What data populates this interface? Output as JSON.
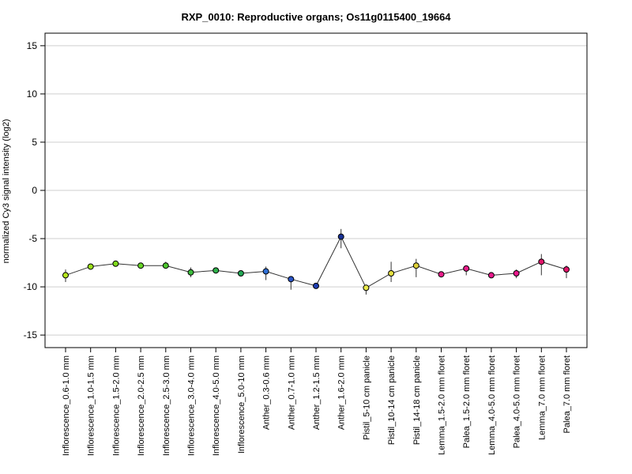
{
  "chart_data": {
    "type": "line",
    "title": "RXP_0010: Reproductive organs; Os11g0115400_19664",
    "xlabel": "",
    "ylabel": "normalized Cy3 signal intensity (log2)",
    "ylim": [
      -16.3,
      16.3
    ],
    "yticks": [
      -15,
      -10,
      -5,
      0,
      5,
      10,
      15
    ],
    "grid": true,
    "legend": "none",
    "categories": [
      "Inflorescence_0.6-1.0 mm",
      "Inflorescence_1.0-1.5 mm",
      "Inflorescence_1.5-2.0 mm",
      "Inflorescence_2.0-2.5 mm",
      "Inflorescence_2.5-3.0 mm",
      "Inflorescence_3.0-4.0 mm",
      "Inflorescence_4.0-5.0 mm",
      "Inflorescence_5.0-10 mm",
      "Anther_0.3-0.6 mm",
      "Anther_0.7-1.0 mm",
      "Anther_1.2-1.5 mm",
      "Anther_1.6-2.0 mm",
      "Pistil_5-10 cm panicle",
      "Pistil_10-14 cm panicle",
      "Pistil_14-18 cm panicle",
      "Lemma_1.5-2.0 mm floret",
      "Palea_1.5-2.0 mm floret",
      "Lemma_4.0-5.0 mm floret",
      "Palea_4.0-5.0 mm floret",
      "Lemma_7.0 mm floret",
      "Palea_7.0 mm floret"
    ],
    "values": [
      -8.8,
      -7.9,
      -7.6,
      -7.8,
      -7.8,
      -8.5,
      -8.3,
      -8.6,
      -8.4,
      -9.2,
      -9.9,
      -4.8,
      -10.1,
      -8.6,
      -7.8,
      -8.7,
      -8.1,
      -8.8,
      -8.6,
      -7.4,
      -8.2
    ],
    "error_low": [
      -9.5,
      -8.1,
      -7.9,
      -8.0,
      -8.1,
      -9.0,
      -8.5,
      -8.8,
      -9.3,
      -10.3,
      -8.5,
      -6.0,
      -10.8,
      -9.5,
      -9.0,
      -9.0,
      -8.8,
      -9.0,
      -9.1,
      -8.8,
      -9.1
    ],
    "error_high": [
      -8.2,
      -7.7,
      -7.3,
      -7.6,
      -7.4,
      -8.0,
      -8.1,
      -8.4,
      -7.9,
      -8.9,
      -8.5,
      -4.0,
      -9.8,
      -7.4,
      -7.1,
      -8.5,
      -7.8,
      -8.6,
      -8.2,
      -6.6,
      -7.8
    ],
    "point_colors": [
      "#b5e61d",
      "#9be01a",
      "#7fda1a",
      "#66d427",
      "#4dc62e",
      "#3cbc3c",
      "#2fb24a",
      "#22a855",
      "#2f6fd6",
      "#2a55c8",
      "#1f3fb3",
      "#173196",
      "#e8e84a",
      "#e6e040",
      "#ddd038",
      "#e81d8a",
      "#e81d8a",
      "#e8188c",
      "#e8188c",
      "#e0156a",
      "#e0156a"
    ],
    "line_color": "#333333"
  }
}
